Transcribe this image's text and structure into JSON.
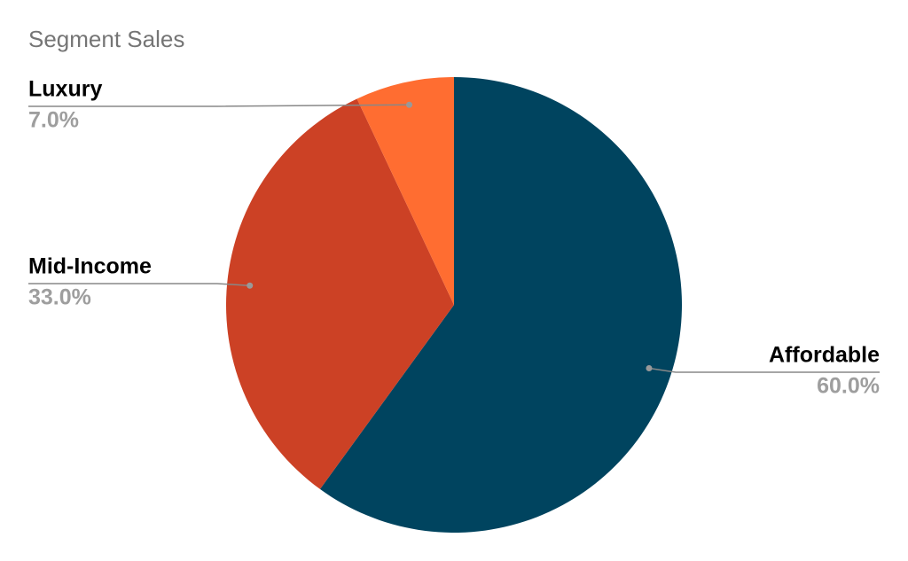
{
  "chart_data": {
    "type": "pie",
    "title": "Segment Sales",
    "categories": [
      "Affordable",
      "Mid-Income",
      "Luxury"
    ],
    "values": [
      60,
      33,
      7
    ],
    "value_labels": [
      "60.0%",
      "33.0%",
      "7.0%"
    ],
    "colors": [
      "#00445f",
      "#cc4125",
      "#ff6d31"
    ]
  }
}
